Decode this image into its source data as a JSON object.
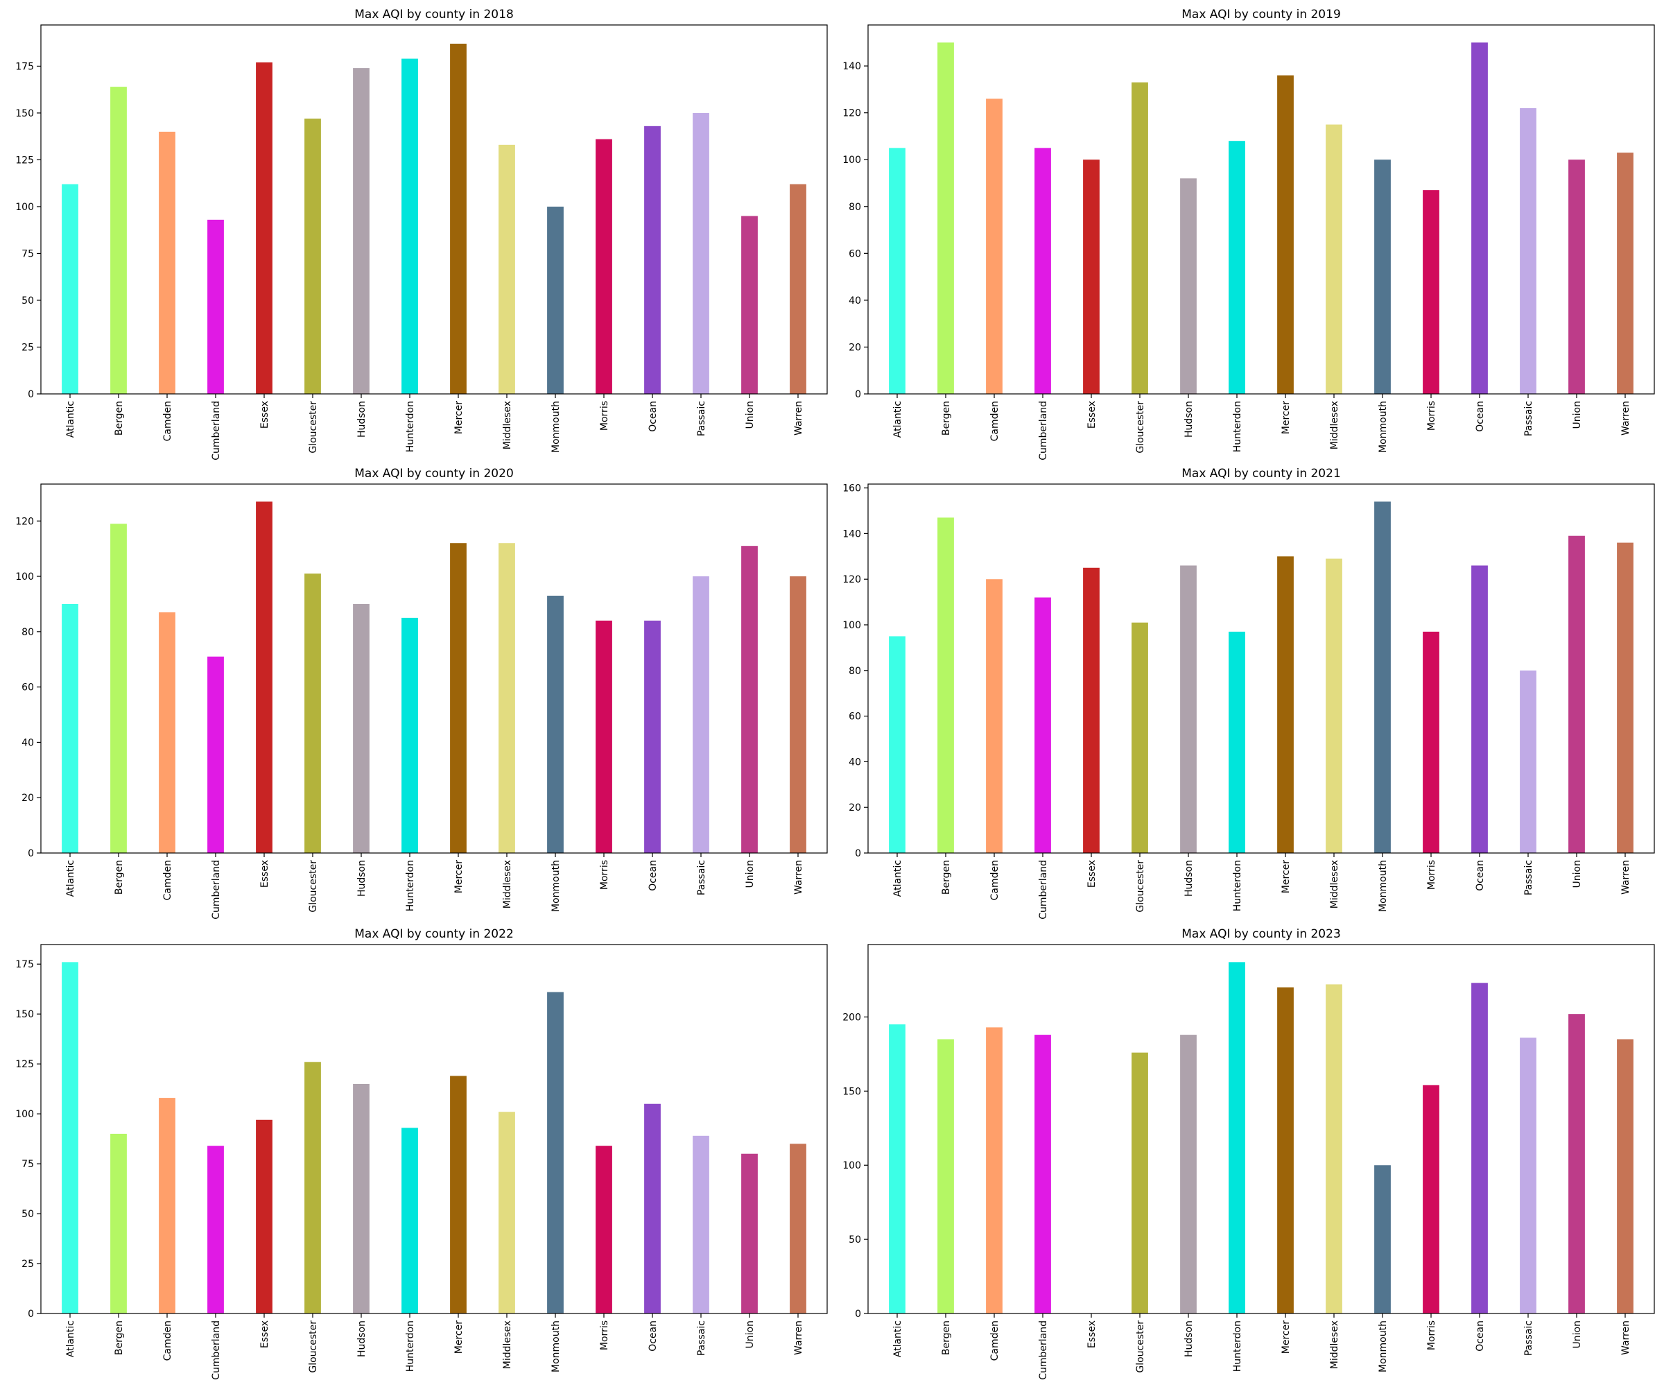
{
  "chart_data": [
    {
      "type": "bar",
      "title": "Max AQI by county in 2018",
      "xlabel": "",
      "ylabel": "",
      "categories": [
        "Atlantic",
        "Bergen",
        "Camden",
        "Cumberland",
        "Essex",
        "Gloucester",
        "Hudson",
        "Hunterdon",
        "Mercer",
        "Middlesex",
        "Monmouth",
        "Morris",
        "Ocean",
        "Passaic",
        "Union",
        "Warren"
      ],
      "values": [
        112,
        164,
        140,
        93,
        177,
        147,
        174,
        179,
        187,
        133,
        100,
        136,
        143,
        150,
        95,
        112
      ],
      "ylim": [
        0,
        197
      ],
      "yticks": [
        0,
        25,
        50,
        75,
        100,
        125,
        150,
        175
      ],
      "grid": false,
      "legend": "none"
    },
    {
      "type": "bar",
      "title": "Max AQI by county in 2019",
      "xlabel": "",
      "ylabel": "",
      "categories": [
        "Atlantic",
        "Bergen",
        "Camden",
        "Cumberland",
        "Essex",
        "Gloucester",
        "Hudson",
        "Hunterdon",
        "Mercer",
        "Middlesex",
        "Monmouth",
        "Morris",
        "Ocean",
        "Passaic",
        "Union",
        "Warren"
      ],
      "values": [
        105,
        150,
        126,
        105,
        100,
        133,
        92,
        108,
        136,
        115,
        100,
        87,
        150,
        122,
        100,
        103
      ],
      "ylim": [
        0,
        157.5
      ],
      "yticks": [
        0,
        20,
        40,
        60,
        80,
        100,
        120,
        140
      ],
      "grid": false,
      "legend": "none"
    },
    {
      "type": "bar",
      "title": "Max AQI by county in 2020",
      "xlabel": "",
      "ylabel": "",
      "categories": [
        "Atlantic",
        "Bergen",
        "Camden",
        "Cumberland",
        "Essex",
        "Gloucester",
        "Hudson",
        "Hunterdon",
        "Mercer",
        "Middlesex",
        "Monmouth",
        "Morris",
        "Ocean",
        "Passaic",
        "Union",
        "Warren"
      ],
      "values": [
        90,
        119,
        87,
        71,
        127,
        101,
        90,
        85,
        112,
        112,
        93,
        84,
        84,
        100,
        111,
        100
      ],
      "ylim": [
        0,
        133.35
      ],
      "yticks": [
        0,
        20,
        40,
        60,
        80,
        100,
        120
      ],
      "grid": false,
      "legend": "none"
    },
    {
      "type": "bar",
      "title": "Max AQI by county in 2021",
      "xlabel": "",
      "ylabel": "",
      "categories": [
        "Atlantic",
        "Bergen",
        "Camden",
        "Cumberland",
        "Essex",
        "Gloucester",
        "Hudson",
        "Hunterdon",
        "Mercer",
        "Middlesex",
        "Monmouth",
        "Morris",
        "Ocean",
        "Passaic",
        "Union",
        "Warren"
      ],
      "values": [
        95,
        147,
        120,
        112,
        125,
        101,
        126,
        97,
        130,
        129,
        154,
        97,
        126,
        80,
        139,
        136
      ],
      "ylim": [
        0,
        161.7
      ],
      "yticks": [
        0,
        20,
        40,
        60,
        80,
        100,
        120,
        140,
        160
      ],
      "grid": false,
      "legend": "none"
    },
    {
      "type": "bar",
      "title": "Max AQI by county in 2022",
      "xlabel": "",
      "ylabel": "",
      "categories": [
        "Atlantic",
        "Bergen",
        "Camden",
        "Cumberland",
        "Essex",
        "Gloucester",
        "Hudson",
        "Hunterdon",
        "Mercer",
        "Middlesex",
        "Monmouth",
        "Morris",
        "Ocean",
        "Passaic",
        "Union",
        "Warren"
      ],
      "values": [
        176,
        90,
        108,
        84,
        97,
        126,
        115,
        93,
        119,
        101,
        161,
        84,
        105,
        89,
        80,
        85
      ],
      "ylim": [
        0,
        184.8
      ],
      "yticks": [
        0,
        25,
        50,
        75,
        100,
        125,
        150,
        175
      ],
      "grid": false,
      "legend": "none"
    },
    {
      "type": "bar",
      "title": "Max AQI by county in 2023",
      "xlabel": "",
      "ylabel": "",
      "categories": [
        "Atlantic",
        "Bergen",
        "Camden",
        "Cumberland",
        "Essex",
        "Gloucester",
        "Hudson",
        "Hunterdon",
        "Mercer",
        "Middlesex",
        "Monmouth",
        "Morris",
        "Ocean",
        "Passaic",
        "Union",
        "Warren"
      ],
      "values": [
        195,
        185,
        193,
        188,
        0,
        176,
        188,
        237,
        220,
        222,
        100,
        154,
        223,
        186,
        202,
        185
      ],
      "ylim": [
        0,
        248.85
      ],
      "yticks": [
        0,
        50,
        100,
        150,
        200
      ],
      "grid": false,
      "legend": "none"
    }
  ],
  "colors": [
    "#3cffe6",
    "#b4f764",
    "#ff9f6a",
    "#e01ae4",
    "#c82424",
    "#b3b33c",
    "#aea2ac",
    "#00e5db",
    "#9c6409",
    "#e2dc80",
    "#52758f",
    "#d10a5c",
    "#8b48c8",
    "#c0aae6",
    "#bd3c89",
    "#c67455"
  ]
}
